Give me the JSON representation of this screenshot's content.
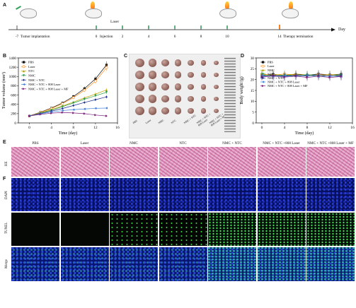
{
  "panels": {
    "a": "A",
    "b": "B",
    "c": "C",
    "d": "D",
    "e": "E",
    "f": "F"
  },
  "timeline": {
    "top_label": "Laser",
    "ticks": [
      {
        "day": "-7",
        "text": "Tumor implantation"
      },
      {
        "day": "0",
        "text": "Injection"
      },
      {
        "day": "2",
        "text": ""
      },
      {
        "day": "4",
        "text": ""
      },
      {
        "day": "6",
        "text": ""
      },
      {
        "day": "8",
        "text": ""
      },
      {
        "day": "10",
        "text": ""
      },
      {
        "day": "14",
        "text": "Therapy termination"
      }
    ],
    "axis_end": "Day",
    "colors": {
      "axis": "#111111",
      "marker_green": "#2fa35a",
      "marker_orange": "#ff7f1a"
    }
  },
  "legend_groups": [
    "PBS",
    "Laser",
    "NTC",
    "NMC",
    "NMC + NTC",
    "NMC + NTC + 808 Laser",
    "NMC + NTC + 808 Laser + MF"
  ],
  "photo_labels": [
    "PBS",
    "Laser",
    "NMC",
    "NTC",
    "NMC + NTC",
    "NMC + NTC + 808 Laser",
    "NMC + NTC + 808 Laser + MF"
  ],
  "chart_data": [
    {
      "type": "line",
      "title": "",
      "xlabel": "Time (day)",
      "ylabel": "Tumor volume (mm³)",
      "xlim": [
        -2,
        16
      ],
      "ylim": [
        0,
        1400
      ],
      "xticks": [
        0,
        4,
        8,
        12,
        16
      ],
      "yticks": [
        0,
        200,
        400,
        600,
        800,
        1000,
        1200,
        1400
      ],
      "legend_position": "top-left",
      "x": [
        0,
        2,
        4,
        6,
        8,
        10,
        12,
        14
      ],
      "series": [
        {
          "name": "PBS",
          "color": "#111111",
          "marker": "square",
          "values": [
            150,
            230,
            320,
            430,
            570,
            740,
            950,
            1250
          ]
        },
        {
          "name": "Laser",
          "color": "#ff8a1a",
          "marker": "circle",
          "values": [
            150,
            225,
            310,
            415,
            545,
            705,
            900,
            1190
          ]
        },
        {
          "name": "NTC",
          "color": "#b9a400",
          "marker": "triangle",
          "values": [
            150,
            215,
            285,
            365,
            450,
            540,
            620,
            710
          ]
        },
        {
          "name": "NMC",
          "color": "#2e9e4a",
          "marker": "triangle-down",
          "values": [
            150,
            210,
            275,
            350,
            430,
            510,
            585,
            660
          ]
        },
        {
          "name": "NMC + NTC",
          "color": "#1a2f8f",
          "marker": "diamond",
          "values": [
            150,
            205,
            255,
            310,
            375,
            440,
            500,
            560
          ]
        },
        {
          "name": "NMC + NTC + 808 Laser",
          "color": "#3f7fdb",
          "marker": "triangle-left",
          "values": [
            150,
            195,
            235,
            265,
            285,
            300,
            315,
            320
          ]
        },
        {
          "name": "NMC + NTC + 808 Laser + MF",
          "color": "#7a1f7a",
          "marker": "triangle-right",
          "values": [
            150,
            185,
            210,
            225,
            215,
            200,
            170,
            150
          ]
        }
      ]
    },
    {
      "type": "line",
      "title": "",
      "xlabel": "Time (day)",
      "ylabel": "Body weight (g)",
      "xlim": [
        -1,
        16
      ],
      "ylim": [
        0,
        30
      ],
      "xticks": [
        0,
        4,
        8,
        12,
        16
      ],
      "yticks": [
        0,
        5,
        10,
        15,
        20,
        25,
        30
      ],
      "legend_position": "top-left",
      "x": [
        0,
        2,
        4,
        6,
        8,
        10,
        12,
        14
      ],
      "series": [
        {
          "name": "PBS",
          "color": "#111111",
          "marker": "square",
          "values": [
            22,
            22.5,
            21.8,
            22.4,
            22.0,
            22.6,
            22.2,
            22.5
          ]
        },
        {
          "name": "Laser",
          "color": "#ff8a1a",
          "marker": "circle",
          "values": [
            22.5,
            22.0,
            22.6,
            22.0,
            21.8,
            22.3,
            22.0,
            21.6
          ]
        },
        {
          "name": "NMC",
          "color": "#b9a400",
          "marker": "triangle",
          "values": [
            21.8,
            22.4,
            22.0,
            22.6,
            22.2,
            21.8,
            22.4,
            22.0
          ]
        },
        {
          "name": "NTC",
          "color": "#2e9e4a",
          "marker": "triangle-down",
          "values": [
            22.2,
            21.6,
            22.2,
            21.7,
            22.3,
            22.0,
            21.6,
            22.2
          ]
        },
        {
          "name": "NMC + NTC",
          "color": "#1a2f8f",
          "marker": "diamond",
          "values": [
            21.5,
            22.0,
            21.4,
            22.0,
            21.6,
            22.1,
            21.5,
            21.9
          ]
        },
        {
          "name": "NMC + NTC + 808 Laser",
          "color": "#3f7fdb",
          "marker": "triangle-left",
          "values": [
            22.0,
            21.4,
            21.9,
            21.5,
            22.0,
            21.3,
            21.8,
            21.4
          ]
        },
        {
          "name": "NMC + NTC + 808 Laser + MF",
          "color": "#7a1f7a",
          "marker": "triangle-right",
          "values": [
            21.2,
            21.7,
            21.1,
            21.6,
            21.0,
            21.5,
            21.0,
            21.4
          ]
        }
      ]
    }
  ],
  "histology": {
    "columns": [
      "PBS",
      "Laser",
      "NMC",
      "NTC",
      "NMC + NTC",
      "NMC + NTC +808 Laser",
      "NMC + NTC +808 Laser + MF"
    ],
    "rows": [
      "HE",
      "DAPI",
      "TUNEL",
      "Merge"
    ]
  }
}
